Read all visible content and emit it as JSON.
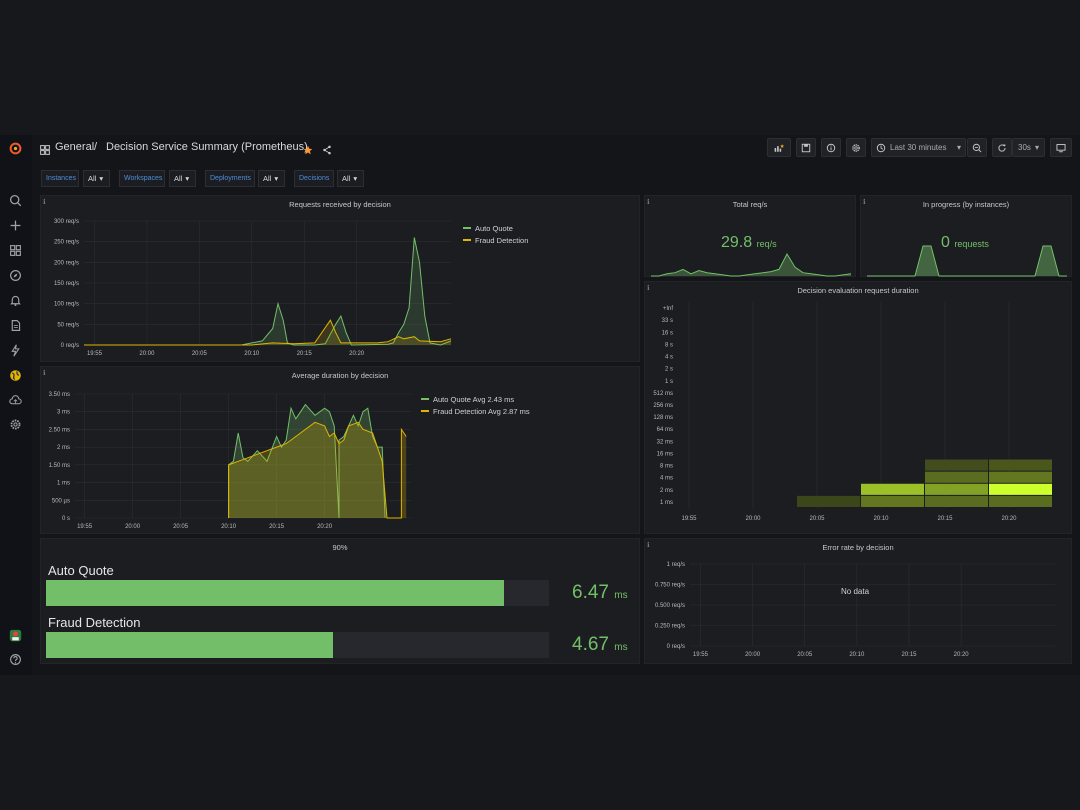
{
  "colors": {
    "green": "#73bf69",
    "yellow": "#e0b400",
    "accent_blue": "#4e8ed6",
    "star": "#ff9830",
    "grafana_orange": "#f05a28"
  },
  "sidebar": {
    "items": [
      {
        "icon": "grafana-logo-icon"
      },
      {
        "icon": "search-icon"
      },
      {
        "icon": "plus-icon"
      },
      {
        "icon": "dashboards-icon"
      },
      {
        "icon": "explore-compass-icon"
      },
      {
        "icon": "alerting-bell-icon"
      },
      {
        "icon": "document-icon"
      },
      {
        "icon": "lightning-icon"
      },
      {
        "icon": "globe-icon"
      },
      {
        "icon": "cloud-upload-icon"
      },
      {
        "icon": "gear-icon"
      },
      {
        "icon": "user-avatar-icon"
      },
      {
        "icon": "help-icon"
      }
    ]
  },
  "header": {
    "crumb_folder": "General",
    "separator": "/",
    "title": "Decision Service Summary (Prometheus)",
    "time_range": "Last 30 minutes",
    "refresh": "30s"
  },
  "variables": [
    {
      "label": "Instances",
      "value": "All"
    },
    {
      "label": "Workspaces",
      "value": "All"
    },
    {
      "label": "Deployments",
      "value": "All"
    },
    {
      "label": "Decisions",
      "value": "All"
    }
  ],
  "panels": {
    "requests": {
      "title": "Requests received by decision",
      "legend": [
        "Auto Quote",
        "Fraud Detection"
      ]
    },
    "total": {
      "title": "Total req/s",
      "value": "29.8",
      "unit": "req/s"
    },
    "inprogress": {
      "title": "In progress (by instances)",
      "value": "0",
      "unit": "requests"
    },
    "heatmap": {
      "title": "Decision evaluation request duration"
    },
    "avgduration": {
      "title": "Average duration by decision",
      "legend": [
        "Auto Quote Avg 2.43 ms",
        "Fraud Detection Avg 2.87 ms"
      ]
    },
    "percentile": {
      "title": "90%",
      "bars": [
        {
          "label": "Auto Quote",
          "value": "6.47",
          "unit": "ms",
          "fraction": 0.91
        },
        {
          "label": "Fraud Detection",
          "value": "4.67",
          "unit": "ms",
          "fraction": 0.57
        }
      ]
    },
    "errorrate": {
      "title": "Error rate by decision",
      "no_data": "No data"
    }
  },
  "chart_data": [
    {
      "type": "line",
      "title": "Requests received by decision",
      "yticks": [
        "0 req/s",
        "50 req/s",
        "100 req/s",
        "150 req/s",
        "200 req/s",
        "250 req/s",
        "300 req/s"
      ],
      "xticks": [
        "19:55",
        "20:00",
        "20:05",
        "20:10",
        "20:15",
        "20:20"
      ],
      "ylim": [
        0,
        300
      ],
      "x_minutes_range": [
        -6,
        29
      ],
      "series": [
        {
          "name": "Auto Quote",
          "color": "#73bf69",
          "points": [
            [
              -6,
              0
            ],
            [
              9,
              0
            ],
            [
              10,
              5
            ],
            [
              11,
              10
            ],
            [
              12,
              40
            ],
            [
              12.5,
              100
            ],
            [
              13,
              60
            ],
            [
              13.4,
              5
            ],
            [
              14,
              0
            ],
            [
              16,
              0
            ],
            [
              17,
              3
            ],
            [
              18,
              50
            ],
            [
              18.5,
              70
            ],
            [
              19,
              30
            ],
            [
              19.5,
              0
            ],
            [
              23,
              2
            ],
            [
              23.5,
              5
            ],
            [
              24,
              30
            ],
            [
              24.5,
              50
            ],
            [
              25,
              90
            ],
            [
              25.5,
              260
            ],
            [
              26,
              200
            ],
            [
              26.5,
              70
            ],
            [
              27,
              5
            ],
            [
              28,
              0
            ],
            [
              29,
              10
            ]
          ]
        },
        {
          "name": "Fraud Detection",
          "color": "#e0b400",
          "points": [
            [
              -6,
              0
            ],
            [
              10,
              0
            ],
            [
              12,
              5
            ],
            [
              14,
              3
            ],
            [
              16,
              5
            ],
            [
              17.5,
              60
            ],
            [
              18,
              30
            ],
            [
              18.5,
              5
            ],
            [
              20,
              5
            ],
            [
              22,
              5
            ],
            [
              23,
              8
            ],
            [
              24,
              20
            ],
            [
              24.5,
              15
            ],
            [
              25.5,
              20
            ],
            [
              26,
              10
            ],
            [
              28,
              8
            ],
            [
              29,
              15
            ]
          ]
        }
      ]
    },
    {
      "type": "area",
      "title": "Total req/s",
      "series": [
        {
          "name": "",
          "values": [
            0,
            0,
            2,
            3,
            6,
            2,
            5,
            3,
            2,
            1,
            0,
            0,
            1,
            2,
            3,
            4,
            6,
            20,
            8,
            3,
            2,
            1,
            0,
            0,
            1,
            2
          ]
        }
      ]
    },
    {
      "type": "area",
      "title": "In progress (by instances)",
      "series": [
        {
          "name": "",
          "values": [
            0,
            0,
            0,
            0,
            0,
            0,
            0,
            1,
            1,
            0,
            0,
            0,
            0,
            0,
            0,
            0,
            0,
            0,
            0,
            0,
            0,
            0,
            1,
            1,
            0,
            0
          ]
        }
      ]
    },
    {
      "type": "heatmap",
      "title": "Decision evaluation request duration",
      "yticks": [
        "+Inf",
        "33 s",
        "16 s",
        "8 s",
        "4 s",
        "2 s",
        "1 s",
        "512 ms",
        "256 ms",
        "128 ms",
        "64 ms",
        "32 ms",
        "16 ms",
        "8 ms",
        "4 ms",
        "2 ms",
        "1 ms"
      ],
      "xticks": [
        "19:55",
        "20:00",
        "20:05",
        "20:10",
        "20:15",
        "20:20"
      ],
      "cells": [
        {
          "col": 2,
          "bucket": "1 ms",
          "intensity": 0.12
        },
        {
          "col": 3,
          "bucket": "1 ms",
          "intensity": 0.35
        },
        {
          "col": 3,
          "bucket": "2 ms",
          "intensity": 0.7
        },
        {
          "col": 4,
          "bucket": "1 ms",
          "intensity": 0.3
        },
        {
          "col": 4,
          "bucket": "2 ms",
          "intensity": 0.55
        },
        {
          "col": 4,
          "bucket": "4 ms",
          "intensity": 0.3
        },
        {
          "col": 4,
          "bucket": "8 ms",
          "intensity": 0.15
        },
        {
          "col": 5,
          "bucket": "1 ms",
          "intensity": 0.3
        },
        {
          "col": 5,
          "bucket": "2 ms",
          "intensity": 1.0
        },
        {
          "col": 5,
          "bucket": "4 ms",
          "intensity": 0.35
        },
        {
          "col": 5,
          "bucket": "8 ms",
          "intensity": 0.2
        }
      ]
    },
    {
      "type": "line",
      "title": "Average duration by decision",
      "yticks": [
        "0 s",
        "500 µs",
        "1 ms",
        "1.50 ms",
        "2 ms",
        "2.50 ms",
        "3 ms",
        "3.50 ms"
      ],
      "xticks": [
        "19:55",
        "20:00",
        "20:05",
        "20:10",
        "20:15",
        "20:20"
      ],
      "ylim": [
        0,
        3.5
      ],
      "x_minutes_range": [
        -6,
        29
      ],
      "series": [
        {
          "name": "Auto Quote",
          "color": "#73bf69",
          "points": [
            [
              10,
              0
            ],
            [
              10,
              1.5
            ],
            [
              10.5,
              1.6
            ],
            [
              11,
              2.4
            ],
            [
              11.5,
              1.7
            ],
            [
              12,
              1.6
            ],
            [
              13,
              1.9
            ],
            [
              14,
              1.6
            ],
            [
              15,
              2.3
            ],
            [
              15.5,
              2.0
            ],
            [
              16,
              2.2
            ],
            [
              16.5,
              3.1
            ],
            [
              17,
              2.8
            ],
            [
              18,
              3.2
            ],
            [
              19,
              2.9
            ],
            [
              20,
              3.1
            ],
            [
              20.5,
              3.0
            ],
            [
              21,
              2.6
            ],
            [
              21.5,
              0
            ],
            [
              21.5,
              2.2
            ],
            [
              22,
              2.3
            ],
            [
              23,
              2.9
            ],
            [
              23.5,
              2.6
            ],
            [
              24,
              3.0
            ],
            [
              24.5,
              3.1
            ],
            [
              25,
              2.3
            ],
            [
              25.5,
              2.0
            ],
            [
              26,
              2.0
            ],
            [
              26.3,
              0
            ]
          ]
        },
        {
          "name": "Fraud Detection",
          "color": "#e0b400",
          "points": [
            [
              10,
              0
            ],
            [
              10,
              1.5
            ],
            [
              11,
              1.6
            ],
            [
              12,
              1.7
            ],
            [
              13,
              1.8
            ],
            [
              14,
              1.9
            ],
            [
              15,
              2.0
            ],
            [
              16,
              2.1
            ],
            [
              17,
              2.3
            ],
            [
              18,
              2.5
            ],
            [
              19,
              2.7
            ],
            [
              20,
              2.6
            ],
            [
              20.5,
              2.3
            ],
            [
              21,
              2.4
            ],
            [
              21.5,
              2.1
            ],
            [
              22,
              2.2
            ],
            [
              22.5,
              2.6
            ],
            [
              23.5,
              2.7
            ],
            [
              24,
              2.5
            ],
            [
              25,
              2.4
            ],
            [
              26,
              1.6
            ],
            [
              26.5,
              0
            ],
            [
              28,
              0
            ],
            [
              28,
              2.5
            ],
            [
              28.5,
              2.3
            ]
          ]
        }
      ]
    },
    {
      "type": "line",
      "title": "Error rate by decision",
      "yticks": [
        "0 req/s",
        "0.250 req/s",
        "0.500 req/s",
        "0.750 req/s",
        "1 req/s"
      ],
      "xticks": [
        "19:55",
        "20:00",
        "20:05",
        "20:10",
        "20:15",
        "20:20"
      ],
      "ylim": [
        0,
        1
      ],
      "series": []
    }
  ]
}
